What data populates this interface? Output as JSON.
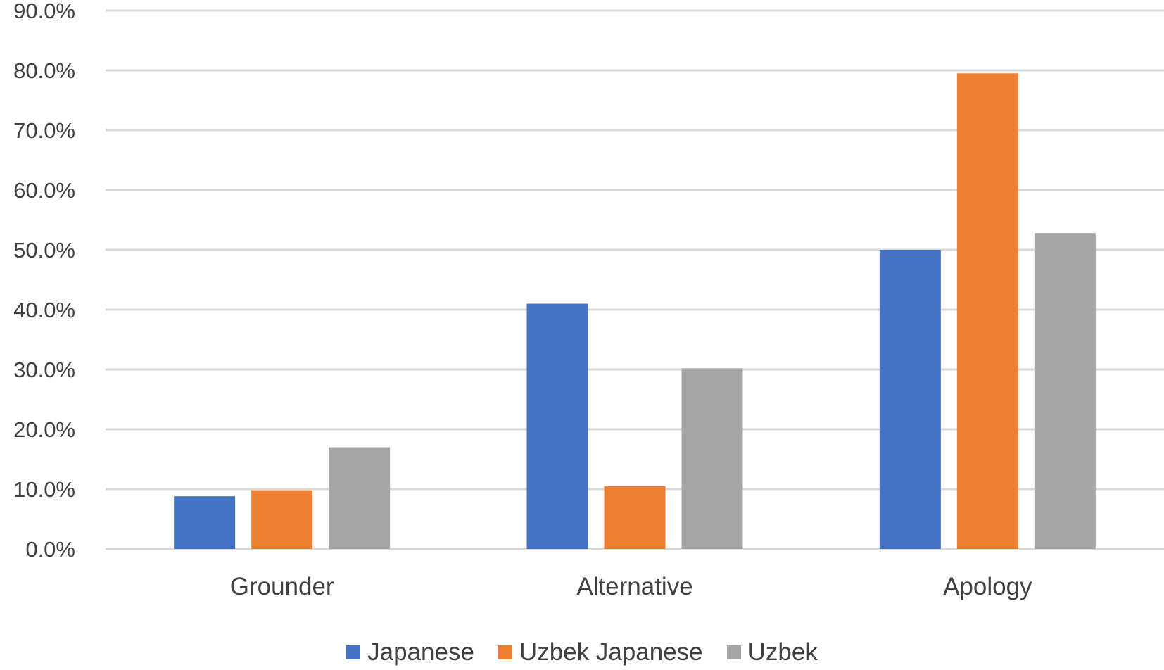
{
  "chart_data": {
    "type": "bar",
    "categories": [
      "Grounder",
      "Alternative",
      "Apology"
    ],
    "series": [
      {
        "name": "Japanese",
        "color": "#4472C4",
        "values": [
          8.8,
          41.0,
          50.0
        ]
      },
      {
        "name": "Uzbek Japanese",
        "color": "#ED7D31",
        "values": [
          9.8,
          10.5,
          79.5
        ]
      },
      {
        "name": "Uzbek",
        "color": "#A5A5A5",
        "values": [
          17.0,
          30.2,
          52.8
        ]
      }
    ],
    "ylim": [
      0,
      90
    ],
    "yticks": [
      "0.0%",
      "10.0%",
      "20.0%",
      "30.0%",
      "40.0%",
      "50.0%",
      "60.0%",
      "70.0%",
      "80.0%",
      "90.0%"
    ],
    "grid": true,
    "legend_position": "bottom"
  }
}
